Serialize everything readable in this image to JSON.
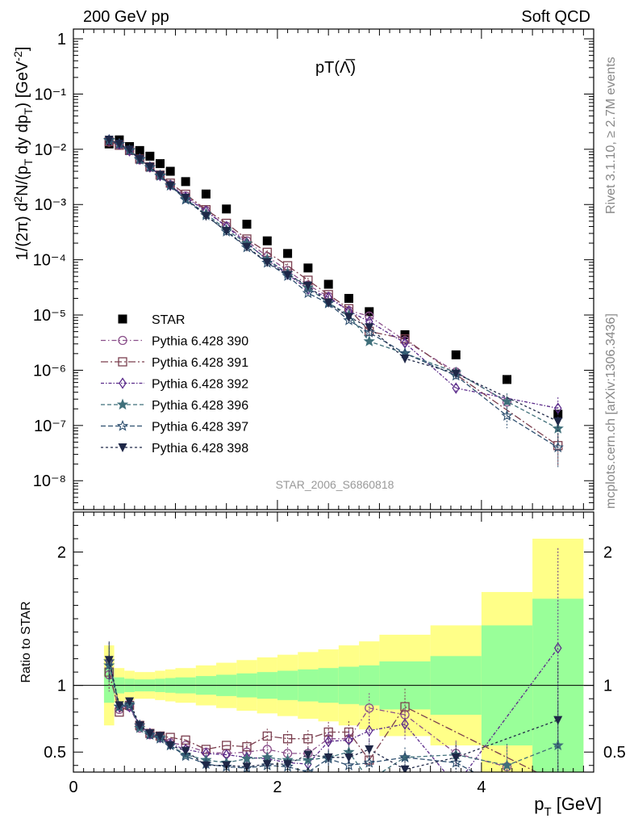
{
  "header": {
    "left": "200 GeV pp",
    "right": "Soft QCD",
    "side_top": "Rivet 3.1.10, ≥ 2.7M events",
    "side_bottom": "mcplots.cern.ch [arXiv:1306.3436]"
  },
  "chart_data": {
    "type": "scatter",
    "title": "pT(Λ̅)",
    "analysis_label": "STAR_2006_S6860818",
    "xlabel": "p_T [GeV]",
    "ylabel": "1/(2π) d²N/(p_T dy dp_T) [GeV⁻²]",
    "ratio_ylabel": "Ratio to STAR",
    "xlim": [
      0,
      5.1
    ],
    "ylim": [
      3e-09,
      1.5
    ],
    "yscale": "log",
    "ratio_ylim": [
      0.35,
      2.3
    ],
    "x_ticks": [
      "0",
      "2",
      "4"
    ],
    "y_ticks": [
      "1",
      "10⁻¹",
      "10⁻²",
      "10⁻³",
      "10⁻⁴",
      "10⁻⁵",
      "10⁻⁶",
      "10⁻⁷",
      "10⁻⁸"
    ],
    "ratio_ticks": [
      "0.5",
      "1",
      "2"
    ],
    "legend_position": "bottom-left",
    "x": [
      0.35,
      0.45,
      0.55,
      0.65,
      0.75,
      0.85,
      0.95,
      1.1,
      1.3,
      1.5,
      1.7,
      1.9,
      2.1,
      2.3,
      2.5,
      2.7,
      2.9,
      3.25,
      3.75,
      4.25,
      4.75
    ],
    "bins": [
      [
        0.3,
        0.4
      ],
      [
        0.4,
        0.5
      ],
      [
        0.5,
        0.6
      ],
      [
        0.6,
        0.7
      ],
      [
        0.7,
        0.8
      ],
      [
        0.8,
        0.9
      ],
      [
        0.9,
        1.0
      ],
      [
        1.0,
        1.2
      ],
      [
        1.2,
        1.4
      ],
      [
        1.4,
        1.6
      ],
      [
        1.6,
        1.8
      ],
      [
        1.8,
        2.0
      ],
      [
        2.0,
        2.2
      ],
      [
        2.2,
        2.4
      ],
      [
        2.4,
        2.6
      ],
      [
        2.6,
        2.8
      ],
      [
        2.8,
        3.0
      ],
      [
        3.0,
        3.5
      ],
      [
        3.5,
        4.0
      ],
      [
        4.0,
        4.5
      ],
      [
        4.5,
        5.0
      ]
    ],
    "reference": {
      "name": "STAR",
      "color": "#000000",
      "values": [
        0.0125,
        0.0148,
        0.0112,
        0.0095,
        0.0075,
        0.0055,
        0.004,
        0.0026,
        0.00155,
        0.00083,
        0.00044,
        0.00022,
        0.00013,
        7.1e-05,
        3.6e-05,
        2e-05,
        1.15e-05,
        4.4e-06,
        1.9e-06,
        6.8e-07,
        1.6e-07
      ],
      "band_stat": [
        0.13,
        0.06,
        0.05,
        0.045,
        0.045,
        0.05,
        0.055,
        0.06,
        0.07,
        0.08,
        0.09,
        0.1,
        0.11,
        0.12,
        0.13,
        0.14,
        0.15,
        0.18,
        0.22,
        0.45,
        0.65
      ],
      "band_total": [
        0.3,
        0.13,
        0.11,
        0.1,
        0.1,
        0.11,
        0.12,
        0.13,
        0.15,
        0.17,
        0.19,
        0.21,
        0.23,
        0.25,
        0.27,
        0.3,
        0.33,
        0.38,
        0.45,
        0.7,
        1.1
      ]
    },
    "series": [
      {
        "name": "Pythia 6.428 390",
        "marker": "circle-open",
        "dash": "6,3,1.5,3",
        "color": "#8a4f8a",
        "ratio": [
          1.08,
          0.82,
          0.84,
          0.68,
          0.63,
          0.62,
          0.57,
          0.55,
          0.5,
          0.49,
          0.5,
          0.52,
          0.49,
          0.49,
          0.6,
          0.6,
          0.83,
          0.78,
          0.49,
          0.39,
          null
        ]
      },
      {
        "name": "Pythia 6.428 391",
        "marker": "square-open",
        "dash": "9,3,2,3",
        "color": "#7a3e4e",
        "ratio": [
          1.1,
          0.8,
          0.85,
          0.7,
          0.64,
          0.62,
          0.61,
          0.59,
          0.52,
          0.55,
          0.54,
          0.62,
          0.6,
          0.6,
          0.65,
          0.65,
          0.44,
          0.84,
          null,
          null,
          0.27
        ]
      },
      {
        "name": "Pythia 6.428 392",
        "marker": "diamond-open",
        "dash": "4,2,1.5,2",
        "color": "#5a2a8a",
        "ratio": [
          1.18,
          0.84,
          0.84,
          0.7,
          0.64,
          0.61,
          0.56,
          0.52,
          0.49,
          0.48,
          0.46,
          0.45,
          0.42,
          0.41,
          0.58,
          0.59,
          0.66,
          0.71,
          0.25,
          null,
          1.28
        ]
      },
      {
        "name": "Pythia 6.428 396",
        "marker": "star-filled",
        "dash": "5,3",
        "color": "#3f6f7a",
        "ratio": [
          1.15,
          0.84,
          0.86,
          0.68,
          0.63,
          0.61,
          0.55,
          0.48,
          0.44,
          0.42,
          0.45,
          0.46,
          0.44,
          0.44,
          0.46,
          0.5,
          0.29,
          0.46,
          0.48,
          0.4,
          0.55
        ]
      },
      {
        "name": "Pythia 6.428 397",
        "marker": "star-open",
        "dash": "6,3",
        "color": "#2e4f6f",
        "ratio": [
          1.18,
          0.84,
          0.85,
          0.7,
          0.63,
          0.6,
          0.55,
          0.47,
          0.41,
          0.39,
          0.38,
          0.4,
          0.39,
          0.35,
          0.45,
          0.4,
          0.42,
          0.46,
          0.42,
          0.22,
          0.25
        ]
      },
      {
        "name": "Pythia 6.428 398",
        "marker": "triangle-down-filled",
        "dash": "3,3",
        "color": "#1e2747",
        "ratio": [
          1.19,
          0.85,
          0.88,
          0.7,
          0.64,
          0.62,
          0.55,
          0.51,
          0.4,
          0.4,
          0.39,
          0.41,
          0.41,
          0.48,
          0.46,
          0.46,
          0.52,
          0.37,
          0.46,
          null,
          0.74
        ]
      }
    ]
  }
}
